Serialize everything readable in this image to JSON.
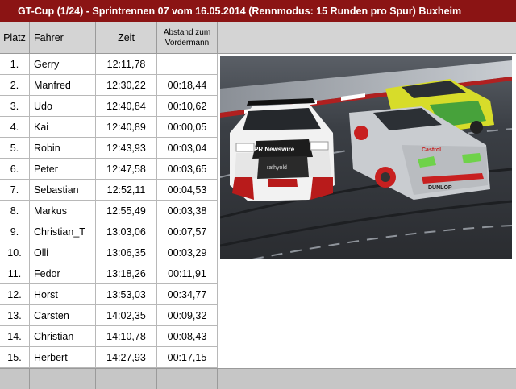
{
  "title": "GT-Cup (1/24) -   Sprintrennen 07 vom 16.05.2014 (Rennmodus: 15 Runden pro Spur) Buxheim",
  "headers": {
    "platz": "Platz",
    "fahrer": "Fahrer",
    "zeit": "Zeit",
    "abstand_line1": "Abstand zum",
    "abstand_line2": "Vordermann"
  },
  "results": [
    {
      "platz": "1.",
      "fahrer": "Gerry",
      "zeit": "12:11,78",
      "abstand": ""
    },
    {
      "platz": "2.",
      "fahrer": "Manfred",
      "zeit": "12:30,22",
      "abstand": "00:18,44"
    },
    {
      "platz": "3.",
      "fahrer": "Udo",
      "zeit": "12:40,84",
      "abstand": "00:10,62"
    },
    {
      "platz": "4.",
      "fahrer": "Kai",
      "zeit": "12:40,89",
      "abstand": "00:00,05"
    },
    {
      "platz": "5.",
      "fahrer": "Robin",
      "zeit": "12:43,93",
      "abstand": "00:03,04"
    },
    {
      "platz": "6.",
      "fahrer": "Peter",
      "zeit": "12:47,58",
      "abstand": "00:03,65"
    },
    {
      "platz": "7.",
      "fahrer": "Sebastian",
      "zeit": "12:52,11",
      "abstand": "00:04,53"
    },
    {
      "platz": "8.",
      "fahrer": "Markus",
      "zeit": "12:55,49",
      "abstand": "00:03,38"
    },
    {
      "platz": "9.",
      "fahrer": "Christian_T",
      "zeit": "13:03,06",
      "abstand": "00:07,57"
    },
    {
      "platz": "10.",
      "fahrer": "Olli",
      "zeit": "13:06,35",
      "abstand": "00:03,29"
    },
    {
      "platz": "11.",
      "fahrer": "Fedor",
      "zeit": "13:18,26",
      "abstand": "00:11,91"
    },
    {
      "platz": "12.",
      "fahrer": "Horst",
      "zeit": "13:53,03",
      "abstand": "00:34,77"
    },
    {
      "platz": "13.",
      "fahrer": "Carsten",
      "zeit": "14:02,35",
      "abstand": "00:09,32"
    },
    {
      "platz": "14.",
      "fahrer": "Christian",
      "zeit": "14:10,78",
      "abstand": "00:08,43"
    },
    {
      "platz": "15.",
      "fahrer": "Herbert",
      "zeit": "14:27,93",
      "abstand": "00:17,15"
    }
  ],
  "photo": {
    "car1_text": "PR Newswire",
    "car1_sub": "rathyold",
    "car2_text": "Castrol",
    "car2_sub": "DUNLOP"
  },
  "colors": {
    "titlebar": "#8b1414",
    "header_bg": "#d4d4d4",
    "footer_bg": "#c6c6c6"
  }
}
